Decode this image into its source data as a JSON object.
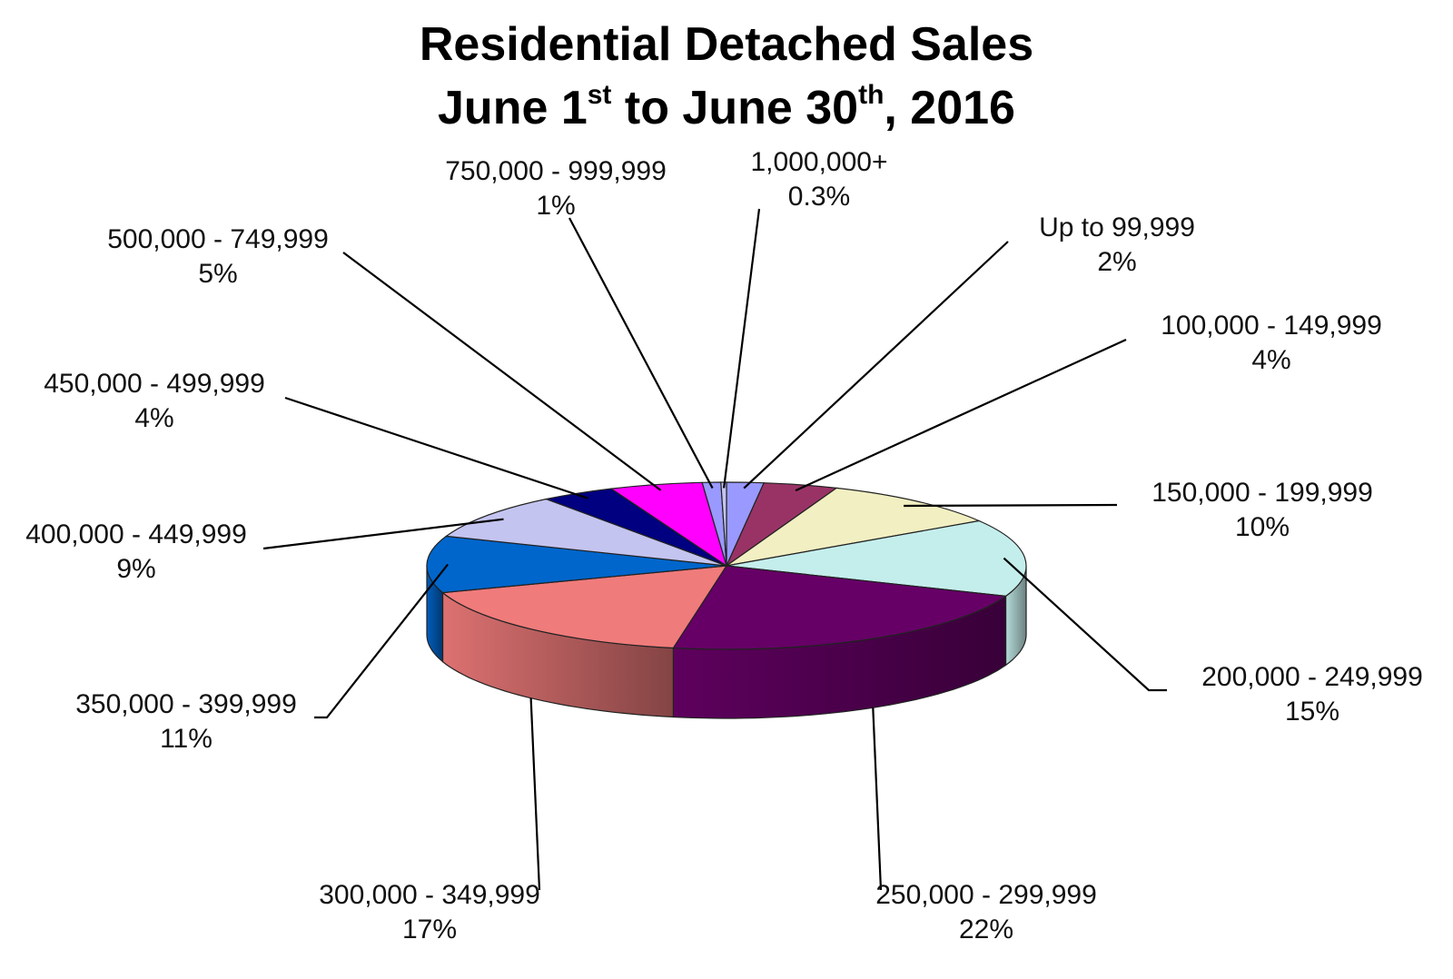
{
  "title": {
    "line1": "Residential Detached Sales",
    "line2_prefix": "June 1",
    "line2_sup1": "st",
    "line2_mid": " to June 30",
    "line2_sup2": "th",
    "line2_suffix": ", 2016"
  },
  "chart_data": {
    "type": "pie",
    "style": "3d",
    "title": "Residential Detached Sales June 1st to June 30th, 2016",
    "slices": [
      {
        "label": "Up to 99,999",
        "value": 2,
        "value_label": "2%",
        "color": "#9999ff"
      },
      {
        "label": "100,000 - 149,999",
        "value": 4,
        "value_label": "4%",
        "color": "#993366"
      },
      {
        "label": "150,000 - 199,999",
        "value": 10,
        "value_label": "10%",
        "color": "#f2efc2"
      },
      {
        "label": "200,000 - 249,999",
        "value": 15,
        "value_label": "15%",
        "color": "#c4eeec"
      },
      {
        "label": "250,000 - 299,999",
        "value": 22,
        "value_label": "22%",
        "color": "#660066"
      },
      {
        "label": "300,000 - 349,999",
        "value": 17,
        "value_label": "17%",
        "color": "#f07b7b"
      },
      {
        "label": "350,000 - 399,999",
        "value": 11,
        "value_label": "11%",
        "color": "#0066cc"
      },
      {
        "label": "400,000 - 449,999",
        "value": 9,
        "value_label": "9%",
        "color": "#c4c4f0"
      },
      {
        "label": "450,000 - 499,999",
        "value": 4,
        "value_label": "4%",
        "color": "#000080"
      },
      {
        "label": "500,000 - 749,999",
        "value": 5,
        "value_label": "5%",
        "color": "#ff00ff"
      },
      {
        "label": "750,000 - 999,999",
        "value": 1,
        "value_label": "1%",
        "color": "#9999ff"
      },
      {
        "label": "1,000,000+",
        "value": 0.3,
        "value_label": "0.3%",
        "color": "#c4c4f0"
      }
    ]
  }
}
